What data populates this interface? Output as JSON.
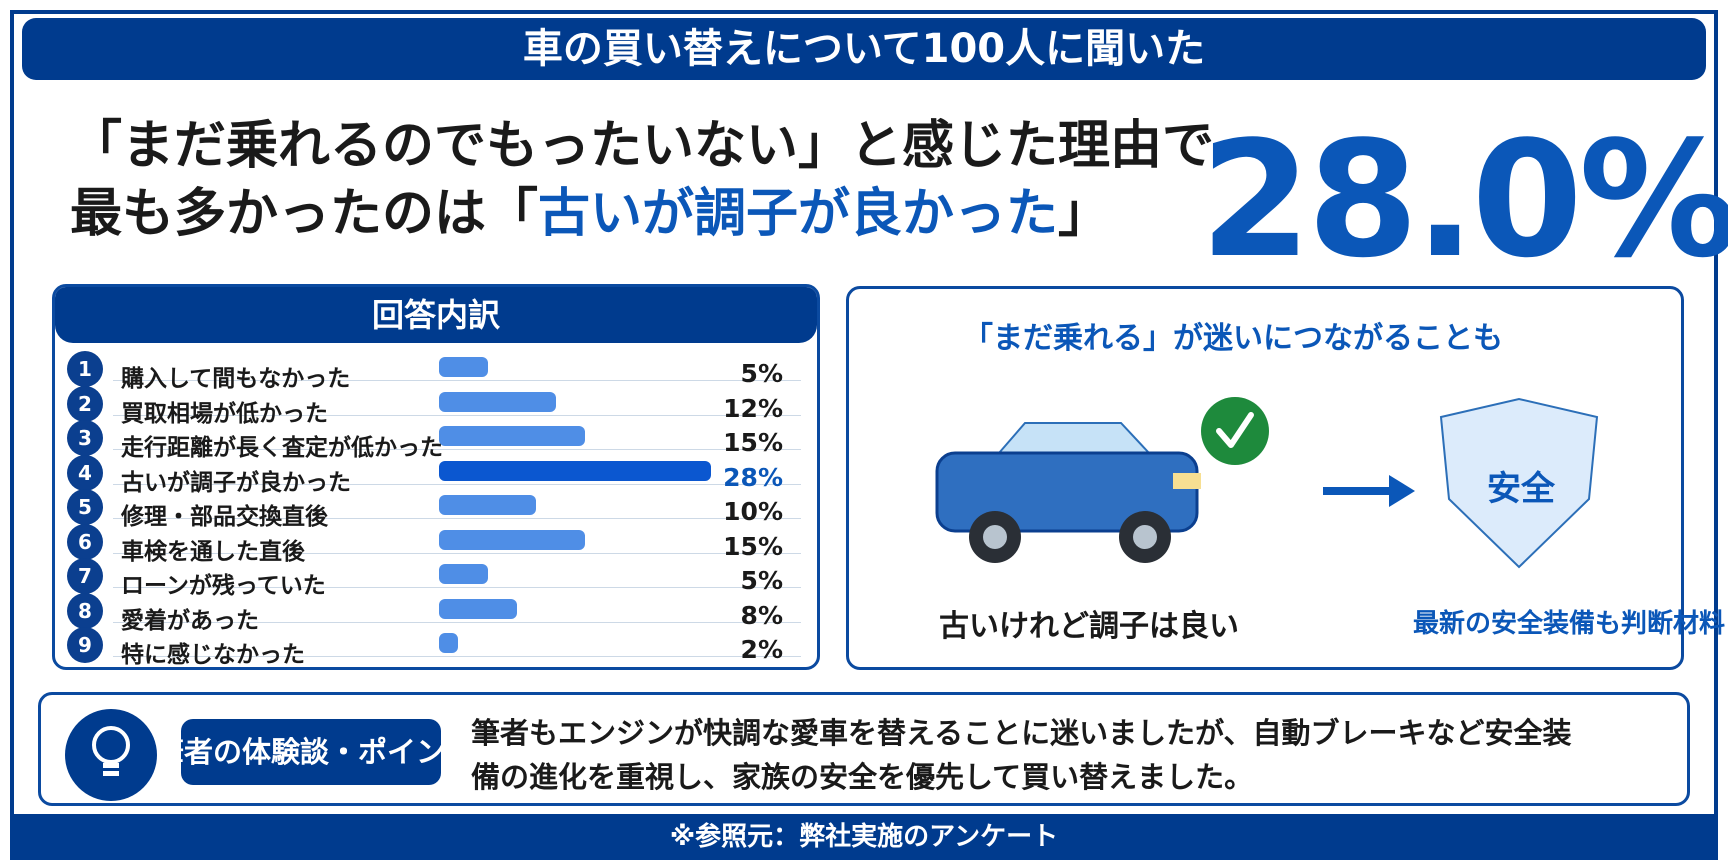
{
  "banner": {
    "title": "車の買い替えについて100人に聞いた"
  },
  "headline": {
    "line1": "「まだ乗れるのでもったいない」と感じた理由で",
    "line2_pre": "最も多かったのは「",
    "line2_hl": "古いが調子が良かった",
    "line2_post": "」"
  },
  "big_stat": "28.0%",
  "chart_data": {
    "type": "bar",
    "title": "回答内訳",
    "categories": [
      "購入して間もなかった",
      "買取相場が低かった",
      "走行距離が長く査定が低かった",
      "古いが調子が良かった",
      "修理・部品交換直後",
      "車検を通した直後",
      "ローンが残っていた",
      "愛着があった",
      "特に感じなかった"
    ],
    "ranks": [
      "1",
      "2",
      "3",
      "4",
      "5",
      "6",
      "7",
      "8",
      "9"
    ],
    "values": [
      5,
      12,
      15,
      28,
      10,
      15,
      5,
      8,
      2
    ],
    "value_labels": [
      "5%",
      "12%",
      "15%",
      "28%",
      "10%",
      "15%",
      "5%",
      "8%",
      "2%"
    ],
    "highlight_index": 3,
    "unit": "%",
    "xlim": [
      0,
      28
    ],
    "colors": {
      "bar": "#4f8ee6",
      "highlight": "#0b57d0"
    }
  },
  "illustration": {
    "title": "「まだ乗れる」が迷いにつながることも",
    "car_caption": "古いけれど調子は良い",
    "shield_word": "安全",
    "safety_caption": "最新の安全装備も判断材料",
    "icons": [
      "car-icon",
      "check-icon",
      "arrow-right-icon",
      "shield-icon"
    ]
  },
  "episode": {
    "label": "筆者の体験談・ポイント",
    "text_line1": "筆者もエンジンが快調な愛車を替えることに迷いましたが、自動ブレーキなど安全装",
    "text_line2": "備の進化を重視し、家族の安全を優先して買い替えました。",
    "icon": "lightbulb-icon"
  },
  "footer": {
    "note": "※参照元：弊社実施のアンケート"
  },
  "colors": {
    "primary": "#003b8e",
    "accent": "#0b57b8",
    "check": "#1e8a3c"
  }
}
